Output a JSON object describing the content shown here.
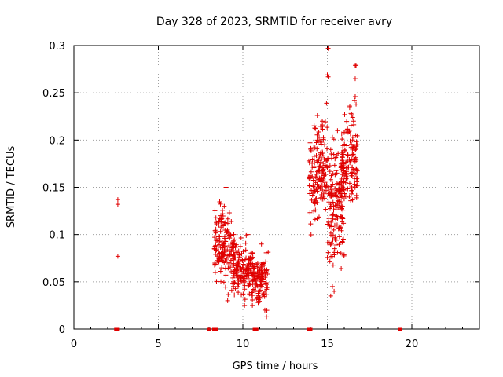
{
  "chart_data": {
    "type": "scatter",
    "title": "Day 328 of 2023, SRMTID for receiver avry",
    "xlabel": "GPS time / hours",
    "ylabel": "SRMTID / TECUs",
    "xlim": [
      0,
      24
    ],
    "ylim": [
      0,
      0.3
    ],
    "x_ticks": [
      0,
      5,
      10,
      15,
      20
    ],
    "y_ticks": [
      0,
      0.05,
      0.1,
      0.15,
      0.2,
      0.25,
      0.3
    ],
    "x_tick_labels": [
      "0",
      "5",
      "10",
      "15",
      "20"
    ],
    "y_tick_labels": [
      "0",
      "0.05",
      "0.1",
      "0.15",
      "0.2",
      "0.25",
      "0.3"
    ],
    "grid": true,
    "marker": "plus",
    "color": "#e00000",
    "clusters": [
      {
        "x_range": [
          8.3,
          9.5
        ],
        "y_range": [
          0.028,
          0.15
        ],
        "count": 150
      },
      {
        "x_range": [
          9.4,
          10.6
        ],
        "y_range": [
          0.025,
          0.1
        ],
        "count": 150
      },
      {
        "x_range": [
          10.5,
          11.5
        ],
        "y_range": [
          0.013,
          0.09
        ],
        "count": 120
      },
      {
        "x_range": [
          13.9,
          15.0
        ],
        "y_range": [
          0.09,
          0.24
        ],
        "count": 150
      },
      {
        "x_range": [
          15.0,
          16.0
        ],
        "y_range": [
          0.035,
          0.225
        ],
        "count": 150
      },
      {
        "x_range": [
          15.8,
          16.8
        ],
        "y_range": [
          0.106,
          0.245
        ],
        "count": 140
      }
    ],
    "series": [
      {
        "name": "SRMTID",
        "points": [
          [
            2.6,
            0.137
          ],
          [
            2.6,
            0.132
          ],
          [
            2.6,
            0.077
          ],
          [
            15.05,
            0.297
          ],
          [
            15.0,
            0.269
          ],
          [
            15.05,
            0.267
          ],
          [
            14.95,
            0.239
          ],
          [
            16.65,
            0.279
          ],
          [
            16.7,
            0.279
          ],
          [
            16.65,
            0.265
          ],
          [
            16.65,
            0.246
          ],
          [
            16.6,
            0.242
          ],
          [
            16.7,
            0.238
          ],
          [
            16.55,
            0.22
          ],
          [
            16.5,
            0.224
          ],
          [
            15.3,
            0.203
          ],
          [
            15.6,
            0.21
          ],
          [
            14.4,
            0.2
          ],
          [
            15.2,
            0.19
          ],
          [
            15.9,
            0.185
          ],
          [
            14.7,
            0.22
          ],
          [
            15.4,
            0.04
          ],
          [
            15.3,
            0.045
          ],
          [
            15.2,
            0.035
          ],
          [
            9.0,
            0.15
          ],
          [
            8.9,
            0.13
          ],
          [
            8.7,
            0.12
          ],
          [
            10.3,
            0.1
          ],
          [
            10.2,
            0.099
          ],
          [
            11.1,
            0.09
          ],
          [
            11.3,
            0.02
          ],
          [
            11.4,
            0.013
          ],
          [
            9.1,
            0.03
          ],
          [
            10.1,
            0.025
          ]
        ]
      }
    ],
    "zero_markers_x": [
      2.5,
      2.6,
      8.0,
      8.3,
      8.4,
      10.7,
      10.8,
      13.9,
      14.0,
      19.3
    ]
  }
}
